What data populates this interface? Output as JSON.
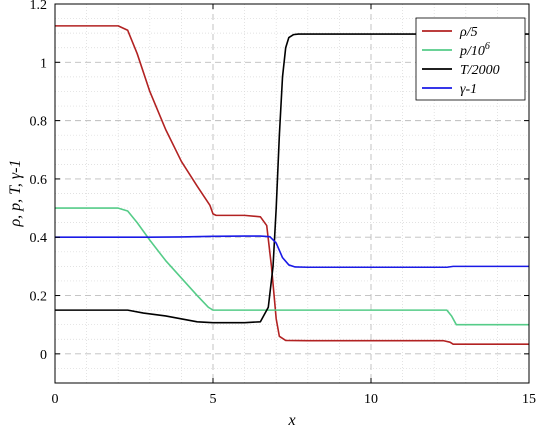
{
  "chart_data": {
    "type": "line",
    "title": "",
    "xlabel": "x",
    "ylabel": "ρ, p, T, γ-1",
    "xlim": [
      0,
      15
    ],
    "ylim": [
      -0.1,
      1.2
    ],
    "xticks": [
      "0",
      "5",
      "10",
      "15"
    ],
    "yticks": [
      "0",
      "0.2",
      "0.4",
      "0.6",
      "0.8",
      "1",
      "1.2"
    ],
    "grid": true,
    "legend_position": "top-right",
    "series": [
      {
        "name": "ρ/5",
        "color": "#b22222",
        "x": [
          0,
          2.0,
          2.3,
          2.6,
          3.0,
          3.5,
          4.0,
          4.5,
          4.9,
          5.0,
          5.1,
          6.0,
          6.5,
          6.7,
          6.85,
          7.0,
          7.1,
          7.3,
          8.0,
          10.0,
          12.3,
          12.5,
          12.6,
          15.0
        ],
        "y": [
          1.125,
          1.125,
          1.11,
          1.03,
          0.9,
          0.77,
          0.66,
          0.575,
          0.51,
          0.48,
          0.475,
          0.475,
          0.47,
          0.44,
          0.3,
          0.12,
          0.06,
          0.046,
          0.045,
          0.045,
          0.045,
          0.04,
          0.033,
          0.033
        ]
      },
      {
        "name": "p/10^6",
        "color": "#55cc88",
        "x": [
          0,
          2.0,
          2.3,
          2.6,
          3.0,
          3.5,
          4.0,
          4.5,
          4.85,
          5.0,
          5.1,
          10.0,
          12.4,
          12.55,
          12.7,
          15.0
        ],
        "y": [
          0.5,
          0.5,
          0.49,
          0.45,
          0.39,
          0.32,
          0.26,
          0.2,
          0.16,
          0.15,
          0.15,
          0.15,
          0.15,
          0.13,
          0.1,
          0.1
        ]
      },
      {
        "name": "T/2000",
        "color": "#000000",
        "x": [
          0,
          2.3,
          2.8,
          3.5,
          4.5,
          5.0,
          6.0,
          6.5,
          6.75,
          6.9,
          7.0,
          7.1,
          7.2,
          7.3,
          7.4,
          7.55,
          7.7,
          15.0
        ],
        "y": [
          0.15,
          0.15,
          0.14,
          0.13,
          0.11,
          0.107,
          0.107,
          0.11,
          0.16,
          0.3,
          0.5,
          0.75,
          0.95,
          1.05,
          1.085,
          1.095,
          1.097,
          1.097
        ]
      },
      {
        "name": "γ-1",
        "color": "#1a1ae6",
        "x": [
          0,
          2.0,
          3.0,
          4.0,
          5.0,
          6.0,
          6.5,
          6.8,
          7.0,
          7.2,
          7.4,
          7.6,
          8.0,
          10.0,
          12.4,
          12.6,
          15.0
        ],
        "y": [
          0.4,
          0.4,
          0.4,
          0.401,
          0.403,
          0.404,
          0.404,
          0.402,
          0.38,
          0.33,
          0.305,
          0.298,
          0.297,
          0.297,
          0.297,
          0.3,
          0.3
        ]
      }
    ]
  }
}
